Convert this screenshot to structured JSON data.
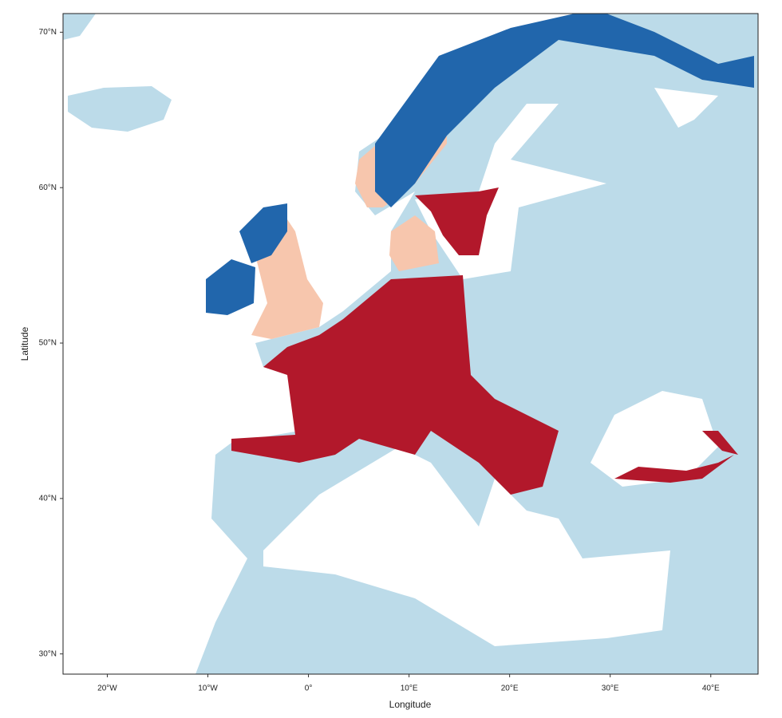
{
  "chart_data": {
    "type": "map",
    "xlabel": "Longitude",
    "ylabel": "Latitude",
    "xlim": [
      -24.4,
      44.7
    ],
    "ylim": [
      28.7,
      71.2
    ],
    "xticks": [
      {
        "value": -20,
        "label": "20°W"
      },
      {
        "value": -10,
        "label": "10°W"
      },
      {
        "value": 0,
        "label": "0°"
      },
      {
        "value": 10,
        "label": "10°E"
      },
      {
        "value": 20,
        "label": "20°E"
      },
      {
        "value": 30,
        "label": "30°E"
      },
      {
        "value": 40,
        "label": "40°E"
      }
    ],
    "yticks": [
      {
        "value": 30,
        "label": "30°N"
      },
      {
        "value": 40,
        "label": "40°N"
      },
      {
        "value": 50,
        "label": "50°N"
      },
      {
        "value": 60,
        "label": "60°N"
      },
      {
        "value": 70,
        "label": "70°N"
      }
    ]
  }
}
